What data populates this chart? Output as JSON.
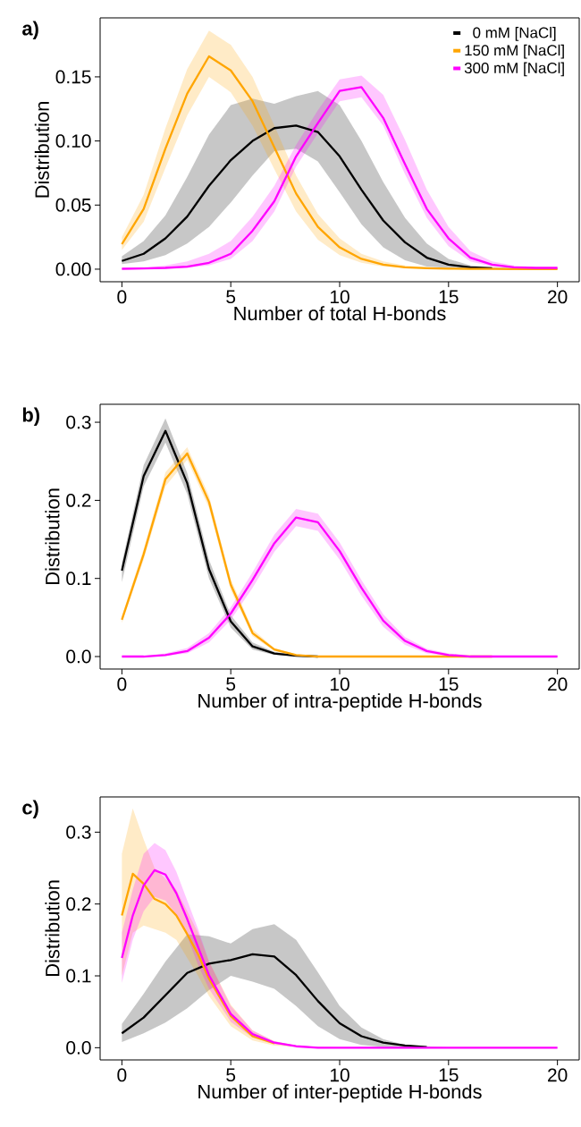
{
  "chart_data": [
    {
      "type": "line",
      "title": "a)",
      "xlabel": "Number of total H-bonds",
      "ylabel": "Distribution",
      "legend": "top right",
      "xlim": [
        -1,
        21
      ],
      "ylim": [
        -0.0098,
        0.196
      ],
      "xticks": [
        0,
        5,
        10,
        15,
        20
      ],
      "yticks": [
        {
          "value": 0,
          "label": "0.00"
        },
        {
          "value": 0.05,
          "label": "0.05"
        },
        {
          "value": 0.1,
          "label": "0.10"
        },
        {
          "value": 0.15,
          "label": "0.15"
        }
      ],
      "x": [
        0,
        1,
        2,
        3,
        4,
        5,
        6,
        7,
        8,
        9,
        10,
        11,
        12,
        13,
        14,
        15,
        16,
        17,
        18,
        19,
        20
      ],
      "series": [
        {
          "name": "0 mM [NaCl]",
          "color": "#000000",
          "values": [
            0.0064,
            0.012,
            0.024,
            0.041,
            0.065,
            0.085,
            0.1,
            0.11,
            0.112,
            0.107,
            0.088,
            0.062,
            0.038,
            0.021,
            0.009,
            0.0035,
            0.0015,
            0.0008,
            null,
            null,
            null
          ],
          "upper": [
            0.01,
            0.022,
            0.042,
            0.072,
            0.105,
            0.128,
            0.133,
            0.129,
            0.135,
            0.139,
            0.128,
            0.1,
            0.068,
            0.04,
            0.02,
            0.008,
            0.003,
            0.0015,
            0.001,
            0.0006,
            0.0004
          ],
          "lower": [
            0.004,
            0.006,
            0.011,
            0.02,
            0.033,
            0.052,
            0.073,
            0.092,
            0.094,
            0.084,
            0.06,
            0.035,
            0.017,
            0.007,
            0.002,
            0.001,
            0.0005,
            0.0002,
            0.0001,
            0,
            0
          ]
        },
        {
          "name": "150 mM [NaCl]",
          "color": "#ffa500",
          "values": [
            0.0195,
            0.047,
            0.094,
            0.137,
            0.166,
            0.155,
            0.131,
            0.095,
            0.059,
            0.033,
            0.017,
            0.008,
            0.0035,
            0.0015,
            0.0008,
            0.0004,
            0.0002,
            0.0002,
            0.0001,
            0.0001,
            0.0001
          ],
          "upper": [
            0.025,
            0.058,
            0.11,
            0.156,
            0.186,
            0.175,
            0.15,
            0.112,
            0.073,
            0.043,
            0.024,
            0.012,
            0.006,
            0.003,
            0.0015,
            0.0008,
            0.0005,
            0.0004,
            0.0003,
            0.0003,
            0.0003
          ],
          "lower": [
            0.015,
            0.037,
            0.079,
            0.12,
            0.15,
            0.138,
            0.112,
            0.078,
            0.045,
            0.023,
            0.011,
            0.005,
            0.002,
            0.001,
            0.0004,
            0.0002,
            0.0001,
            0,
            0,
            0,
            0
          ]
        },
        {
          "name": "300 mM [NaCl]",
          "color": "#ff00ff",
          "values": [
            0.0003,
            0.0005,
            0.001,
            0.002,
            0.005,
            0.012,
            0.03,
            0.053,
            0.088,
            0.114,
            0.139,
            0.142,
            0.118,
            0.082,
            0.047,
            0.024,
            0.009,
            0.0035,
            0.0015,
            0.001,
            0.001
          ],
          "upper": [
            0.0006,
            0.001,
            0.003,
            0.006,
            0.012,
            0.022,
            0.041,
            0.065,
            0.097,
            0.124,
            0.148,
            0.151,
            0.136,
            0.101,
            0.062,
            0.033,
            0.014,
            0.006,
            0.003,
            0.0015,
            0.0013
          ],
          "lower": [
            0.0001,
            0.0002,
            0.001,
            0.001,
            0.003,
            0.008,
            0.022,
            0.045,
            0.08,
            0.106,
            0.131,
            0.134,
            0.112,
            0.074,
            0.04,
            0.018,
            0.006,
            0.002,
            0.001,
            0.0007,
            0.0007
          ]
        }
      ]
    },
    {
      "type": "line",
      "title": "b)",
      "xlabel": "Number of intra-peptide H-bonds",
      "ylabel": "Distribution",
      "xlim": [
        -1,
        21
      ],
      "ylim": [
        -0.016,
        0.323
      ],
      "xticks": [
        0,
        5,
        10,
        15,
        20
      ],
      "yticks": [
        {
          "value": 0,
          "label": "0.0"
        },
        {
          "value": 0.1,
          "label": "0.1"
        },
        {
          "value": 0.2,
          "label": "0.2"
        },
        {
          "value": 0.3,
          "label": "0.3"
        }
      ],
      "x": [
        0,
        1,
        2,
        3,
        4,
        5,
        6,
        7,
        8,
        9,
        10,
        11,
        12,
        13,
        14,
        15,
        16,
        17,
        18,
        19,
        20
      ],
      "series": [
        {
          "color": "#000000",
          "values": [
            0.11,
            0.231,
            0.289,
            0.222,
            0.112,
            0.045,
            0.013,
            0.004,
            0.001,
            0,
            null,
            null,
            null,
            null,
            null,
            null,
            null,
            null,
            null,
            null,
            null
          ],
          "upper": [
            0.12,
            0.245,
            0.305,
            0.235,
            0.124,
            0.053,
            0.018,
            0.006,
            0.002,
            0.0005,
            0.0005,
            0.0005,
            0.0005,
            0.0005,
            0.0005,
            0.0005,
            0.0005,
            0.0005,
            0.0005,
            0.0005,
            0.0005
          ],
          "lower": [
            0.095,
            0.218,
            0.274,
            0.208,
            0.1,
            0.037,
            0.009,
            0.002,
            0.0005,
            0,
            0,
            0,
            0,
            0,
            0,
            0,
            0,
            0,
            0,
            0,
            0
          ]
        },
        {
          "color": "#ffa500",
          "values": [
            0.047,
            0.131,
            0.227,
            0.26,
            0.198,
            0.092,
            0.03,
            0.009,
            0.002,
            0,
            0,
            0,
            0,
            0,
            0,
            0,
            0,
            0,
            null,
            null,
            null
          ],
          "upper": [
            0.052,
            0.138,
            0.236,
            0.268,
            0.206,
            0.099,
            0.035,
            0.011,
            0.003,
            0.001,
            0.0005,
            0.0005,
            0.0005,
            0.0005,
            0.0005,
            0.0005,
            0.0005,
            0.0005,
            0.0005,
            0.0005,
            0.0005
          ],
          "lower": [
            0.043,
            0.124,
            0.218,
            0.252,
            0.19,
            0.085,
            0.026,
            0.007,
            0.001,
            0,
            0,
            0,
            0,
            0,
            0,
            0,
            0,
            0,
            0,
            0,
            0
          ]
        },
        {
          "color": "#ff00ff",
          "values": [
            0,
            0,
            0.002,
            0.007,
            0.024,
            0.055,
            0.098,
            0.145,
            0.178,
            0.172,
            0.135,
            0.088,
            0.046,
            0.02,
            0.007,
            0.002,
            0,
            0,
            0,
            0,
            0
          ],
          "upper": [
            0.0005,
            0.001,
            0.004,
            0.011,
            0.03,
            0.063,
            0.108,
            0.156,
            0.189,
            0.183,
            0.146,
            0.098,
            0.054,
            0.025,
            0.01,
            0.004,
            0.0015,
            0.0008,
            0.0005,
            0.0005,
            0.0005
          ],
          "lower": [
            0,
            0,
            0.001,
            0.004,
            0.018,
            0.047,
            0.088,
            0.134,
            0.167,
            0.161,
            0.124,
            0.078,
            0.038,
            0.015,
            0.004,
            0.001,
            0.0003,
            0,
            0,
            0,
            0
          ]
        }
      ]
    },
    {
      "type": "line",
      "title": "c)",
      "xlabel": "Number of inter-peptide H-bonds",
      "ylabel": "Distribution",
      "xlim": [
        -1,
        21
      ],
      "ylim": [
        -0.017,
        0.349
      ],
      "xticks": [
        0,
        5,
        10,
        15,
        20
      ],
      "yticks": [
        {
          "value": 0,
          "label": "0.0"
        },
        {
          "value": 0.1,
          "label": "0.1"
        },
        {
          "value": 0.2,
          "label": "0.2"
        },
        {
          "value": 0.3,
          "label": "0.3"
        }
      ],
      "x": [
        0,
        1,
        2,
        3,
        4,
        5,
        6,
        7,
        8,
        9,
        10,
        11,
        12,
        13,
        14,
        15,
        16,
        17,
        18,
        19,
        20
      ],
      "series": [
        {
          "color": "#000000",
          "values": [
            0.02,
            0.042,
            0.073,
            0.104,
            0.117,
            0.122,
            0.13,
            0.127,
            0.101,
            0.065,
            0.034,
            0.016,
            0.007,
            0.003,
            0.001,
            null,
            null,
            null,
            null,
            null,
            null
          ],
          "upper": [
            0.033,
            0.075,
            0.12,
            0.158,
            0.155,
            0.145,
            0.165,
            0.172,
            0.15,
            0.105,
            0.058,
            0.028,
            0.012,
            0.004,
            0.002,
            0.0005,
            0.0005,
            0.0005,
            0.0005,
            0.0005,
            0.0005
          ],
          "lower": [
            0.008,
            0.02,
            0.035,
            0.055,
            0.08,
            0.1,
            0.092,
            0.082,
            0.058,
            0.03,
            0.012,
            0.004,
            0.001,
            0,
            0,
            0,
            0,
            0,
            0,
            0,
            0
          ]
        },
        {
          "color": "#ffa500",
          "x": [
            0,
            0.5,
            1,
            1.5,
            2,
            2.5,
            3,
            3.5,
            4,
            5,
            6,
            7,
            8,
            9,
            10,
            11,
            12,
            13,
            14,
            15,
            16,
            17,
            18,
            19,
            20
          ],
          "values": [
            0.184,
            0.242,
            0.228,
            0.207,
            0.2,
            0.184,
            0.158,
            0.13,
            0.096,
            0.044,
            0.016,
            0.006,
            null,
            null,
            null,
            null,
            null,
            null,
            null,
            null,
            null,
            null,
            null,
            null,
            null
          ],
          "upper": [
            0.27,
            0.333,
            0.29,
            0.25,
            0.235,
            0.22,
            0.19,
            0.16,
            0.12,
            0.06,
            0.024,
            0.009,
            0.003,
            0.001,
            0.0005,
            0.0005,
            0.0005,
            0.0005,
            0.0005,
            0.0005,
            0.0005,
            0.0005,
            0.0005,
            0.0005,
            0.0005
          ],
          "lower": [
            0.1,
            0.16,
            0.17,
            0.165,
            0.16,
            0.15,
            0.125,
            0.1,
            0.072,
            0.03,
            0.01,
            0.003,
            0.001,
            0,
            0,
            0,
            0,
            0,
            0,
            0,
            0,
            0,
            0,
            0,
            0
          ]
        },
        {
          "color": "#ff00ff",
          "x": [
            0,
            0.5,
            1,
            1.5,
            2,
            2.5,
            3,
            3.5,
            4,
            5,
            6,
            7,
            8,
            9,
            10,
            11,
            12,
            13,
            14,
            15,
            16,
            17,
            18,
            19,
            20
          ],
          "values": [
            0.125,
            0.184,
            0.226,
            0.247,
            0.241,
            0.215,
            0.179,
            0.14,
            0.101,
            0.047,
            0.019,
            0.007,
            0.002,
            0,
            0,
            0,
            0,
            0,
            0,
            0,
            0,
            0,
            0,
            0,
            0
          ],
          "upper": [
            0.16,
            0.22,
            0.27,
            0.285,
            0.275,
            0.245,
            0.205,
            0.165,
            0.12,
            0.058,
            0.024,
            0.009,
            0.003,
            0.001,
            0.0005,
            0.0005,
            0.0005,
            0.0005,
            0.0005,
            0.0005,
            0.0005,
            0.0005,
            0.0005,
            0.0005,
            0.0005
          ],
          "lower": [
            0.09,
            0.15,
            0.19,
            0.21,
            0.205,
            0.185,
            0.155,
            0.115,
            0.082,
            0.036,
            0.014,
            0.005,
            0.001,
            0,
            0,
            0,
            0,
            0,
            0,
            0,
            0,
            0,
            0,
            0,
            0
          ]
        }
      ]
    }
  ]
}
